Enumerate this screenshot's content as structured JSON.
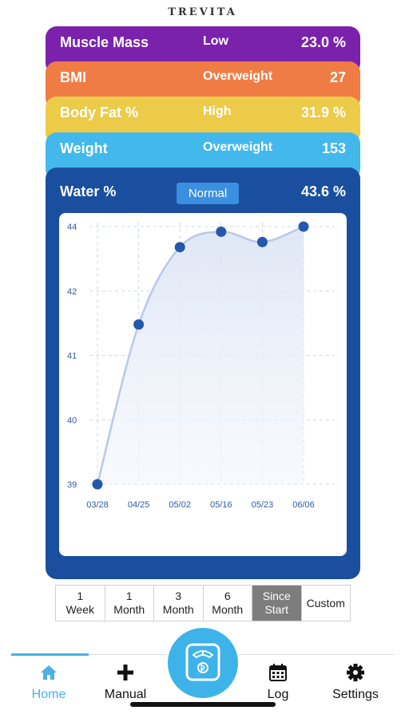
{
  "brand": "TREVITA",
  "metrics": [
    {
      "name": "Muscle Mass",
      "status": "Low",
      "value": "23.0 %",
      "color": "#7b22ad"
    },
    {
      "name": "BMI",
      "status": "Overweight",
      "value": "27",
      "color": "#f07c45"
    },
    {
      "name": "Body Fat %",
      "status": "High",
      "value": "31.9 %",
      "color": "#eccb49"
    },
    {
      "name": "Weight",
      "status": "Overweight",
      "value": "153",
      "color": "#43b8ec"
    }
  ],
  "water": {
    "title": "Water %",
    "status": "Normal",
    "value": "43.6 %",
    "panel_color": "#1a4fa0"
  },
  "chart_data": {
    "type": "line",
    "x": [
      "03/28",
      "04/25",
      "05/02",
      "05/16",
      "05/23",
      "06/06"
    ],
    "series": [
      {
        "values": [
          39.0,
          42.1,
          43.6,
          43.9,
          43.7,
          44.0
        ]
      }
    ],
    "yticks": [
      "39",
      "40",
      "41",
      "42",
      "44"
    ],
    "grid": true,
    "line_color": "#b8c8e8",
    "point_color": "#2458ad"
  },
  "ranges": {
    "options": [
      "1\nWeek",
      "1\nMonth",
      "3\nMonth",
      "6\nMonth",
      "Since\nStart",
      "Custom"
    ],
    "selected": 4
  },
  "nav": {
    "home": "Home",
    "manual": "Manual",
    "log": "Log",
    "settings": "Settings",
    "active_color": "#4ab0e6"
  }
}
